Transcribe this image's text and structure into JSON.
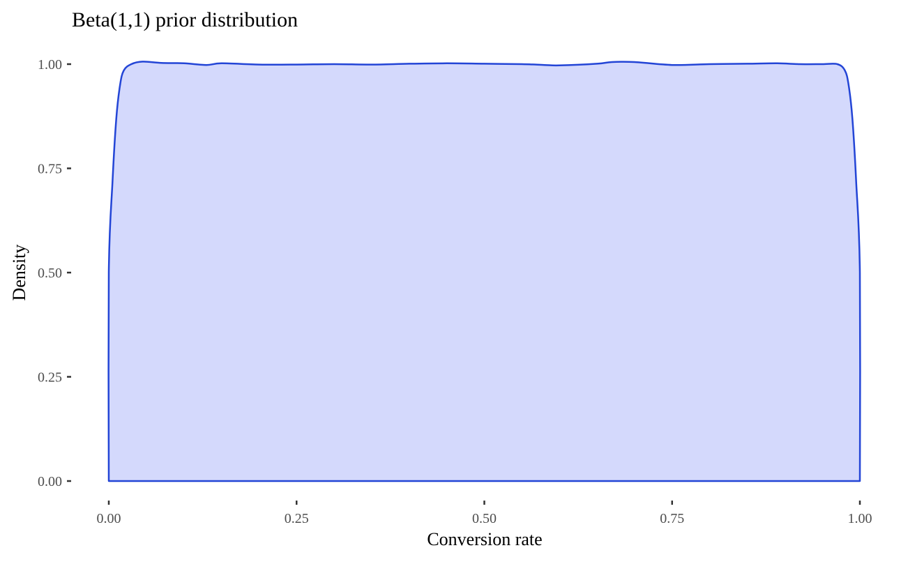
{
  "chart_data": {
    "type": "area",
    "title": "Beta(1,1) prior distribution",
    "xlabel": "Conversion rate",
    "ylabel": "Density",
    "xlim": [
      0,
      1
    ],
    "ylim": [
      0,
      1
    ],
    "x_ticks": [
      "0.00",
      "0.25",
      "0.50",
      "0.75",
      "1.00"
    ],
    "y_ticks": [
      "0.00",
      "0.25",
      "0.50",
      "0.75",
      "1.00"
    ],
    "grid": false,
    "legend": "none",
    "colors": {
      "line": "#2345d6",
      "fill": "#d4d9fc",
      "axis_ticks": "#333333"
    },
    "series": [
      {
        "x": [
          0.0,
          0.0,
          0.005,
          0.01,
          0.015,
          0.02,
          0.03,
          0.045,
          0.07,
          0.1,
          0.13,
          0.15,
          0.2,
          0.25,
          0.3,
          0.35,
          0.4,
          0.45,
          0.5,
          0.55,
          0.58,
          0.6,
          0.65,
          0.67,
          0.7,
          0.75,
          0.8,
          0.85,
          0.89,
          0.92,
          0.95,
          0.97,
          0.98,
          0.985,
          0.99,
          0.995,
          1.0,
          1.0
        ],
        "values": [
          0.0,
          0.5,
          0.72,
          0.87,
          0.95,
          0.985,
          1.0,
          1.006,
          1.003,
          1.002,
          0.998,
          1.002,
          0.999,
          0.999,
          1.0,
          0.999,
          1.001,
          1.002,
          1.001,
          1.0,
          0.998,
          0.997,
          1.001,
          1.005,
          1.005,
          0.998,
          1.0,
          1.001,
          1.002,
          1.0,
          1.0,
          1.0,
          0.985,
          0.95,
          0.87,
          0.72,
          0.5,
          0.0
        ]
      }
    ]
  }
}
